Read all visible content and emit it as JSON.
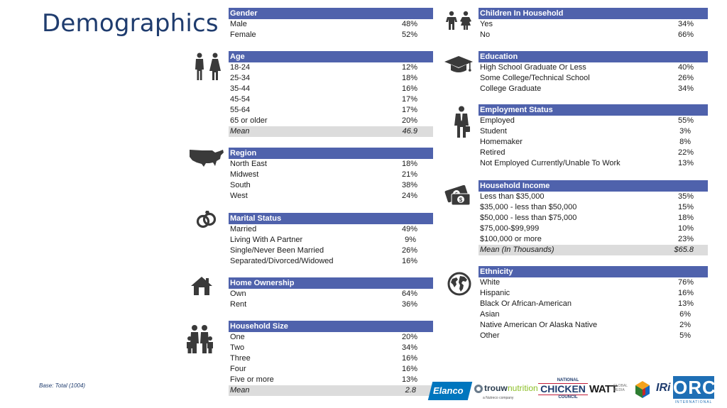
{
  "page": {
    "title": "Demographics",
    "base_note": "Base: Total (1004)"
  },
  "left_sections": {
    "gender": {
      "header": "Gender",
      "rows": [
        {
          "label": "Male",
          "value": "48%"
        },
        {
          "label": "Female",
          "value": "52%"
        }
      ]
    },
    "age": {
      "header": "Age",
      "rows": [
        {
          "label": "18-24",
          "value": "12%"
        },
        {
          "label": "25-34",
          "value": "18%"
        },
        {
          "label": "35-44",
          "value": "16%"
        },
        {
          "label": "45-54",
          "value": "17%"
        },
        {
          "label": "55-64",
          "value": "17%"
        },
        {
          "label": "65 or older",
          "value": "20%"
        }
      ],
      "mean": {
        "label": "Mean",
        "value": "46.9"
      }
    },
    "region": {
      "header": "Region",
      "rows": [
        {
          "label": "North East",
          "value": "18%"
        },
        {
          "label": "Midwest",
          "value": "21%"
        },
        {
          "label": "South",
          "value": "38%"
        },
        {
          "label": "West",
          "value": "24%"
        }
      ]
    },
    "marital": {
      "header": "Marital Status",
      "rows": [
        {
          "label": "Married",
          "value": "49%"
        },
        {
          "label": "Living With A Partner",
          "value": "9%"
        },
        {
          "label": "Single/Never Been Married",
          "value": "26%"
        },
        {
          "label": "Separated/Divorced/Widowed",
          "value": "16%"
        }
      ]
    },
    "home": {
      "header": "Home Ownership",
      "rows": [
        {
          "label": "Own",
          "value": "64%"
        },
        {
          "label": "Rent",
          "value": "36%"
        }
      ]
    },
    "household_size": {
      "header": "Household Size",
      "rows": [
        {
          "label": "One",
          "value": "20%"
        },
        {
          "label": "Two",
          "value": "34%"
        },
        {
          "label": "Three",
          "value": "16%"
        },
        {
          "label": "Four",
          "value": "16%"
        },
        {
          "label": "Five or more",
          "value": "13%"
        }
      ],
      "mean": {
        "label": "Mean",
        "value": "2.8"
      }
    }
  },
  "right_sections": {
    "children": {
      "header": "Children In Household",
      "rows": [
        {
          "label": "Yes",
          "value": "34%"
        },
        {
          "label": "No",
          "value": "66%"
        }
      ]
    },
    "education": {
      "header": "Education",
      "rows": [
        {
          "label": "High School Graduate Or Less",
          "value": "40%"
        },
        {
          "label": "Some College/Technical School",
          "value": "26%"
        },
        {
          "label": "College Graduate",
          "value": "34%"
        }
      ]
    },
    "employment": {
      "header": "Employment Status",
      "rows": [
        {
          "label": "Employed",
          "value": "55%"
        },
        {
          "label": "Student",
          "value": "3%"
        },
        {
          "label": "Homemaker",
          "value": "8%"
        },
        {
          "label": "Retired",
          "value": "22%"
        },
        {
          "label": "Not Employed Currently/Unable To Work",
          "value": "13%"
        }
      ]
    },
    "income": {
      "header": "Household Income",
      "rows": [
        {
          "label": "Less than $35,000",
          "value": "35%"
        },
        {
          "label": "$35,000 - less than $50,000",
          "value": "15%"
        },
        {
          "label": "$50,000 - less than $75,000",
          "value": "18%"
        },
        {
          "label": "$75,000-$99,999",
          "value": "10%"
        },
        {
          "label": "$100,000 or more",
          "value": "23%"
        }
      ],
      "mean": {
        "label": "Mean (In Thousands)",
        "value": "$65.8"
      }
    },
    "ethnicity": {
      "header": "Ethnicity",
      "rows": [
        {
          "label": "White",
          "value": "76%"
        },
        {
          "label": "Hispanic",
          "value": "16%"
        },
        {
          "label": "Black Or African-American",
          "value": "13%"
        },
        {
          "label": "Asian",
          "value": "6%"
        },
        {
          "label": "Native American Or Alaska Native",
          "value": "2%"
        },
        {
          "label": "Other",
          "value": "5%"
        }
      ]
    }
  },
  "icons": [
    "children-icon",
    "people-icon",
    "graduation-cap-icon",
    "usa-map-icon",
    "businessman-icon",
    "rings-icon",
    "money-icon",
    "house-icon",
    "globe-icon",
    "family-icon"
  ],
  "logos": {
    "elanco": "Elanco",
    "trouw": "trouw",
    "trouw_suffix": "nutrition",
    "trouw_sub": "a Nutreco company",
    "ncc_top": "NATIONAL",
    "ncc_mid": "CHICKEN",
    "ncc_bot": "COUNCIL",
    "watt": "WATT",
    "watt_suffix": "GLOBAL MEDIA",
    "iri": "IRi",
    "orc": "ORC",
    "orc_sub": "INTERNATIONAL"
  },
  "colors": {
    "header_bg": "#4f62ac",
    "title": "#1f3c6e",
    "mean_bg": "#dcdcdc",
    "icon": "#3a3a3a"
  }
}
